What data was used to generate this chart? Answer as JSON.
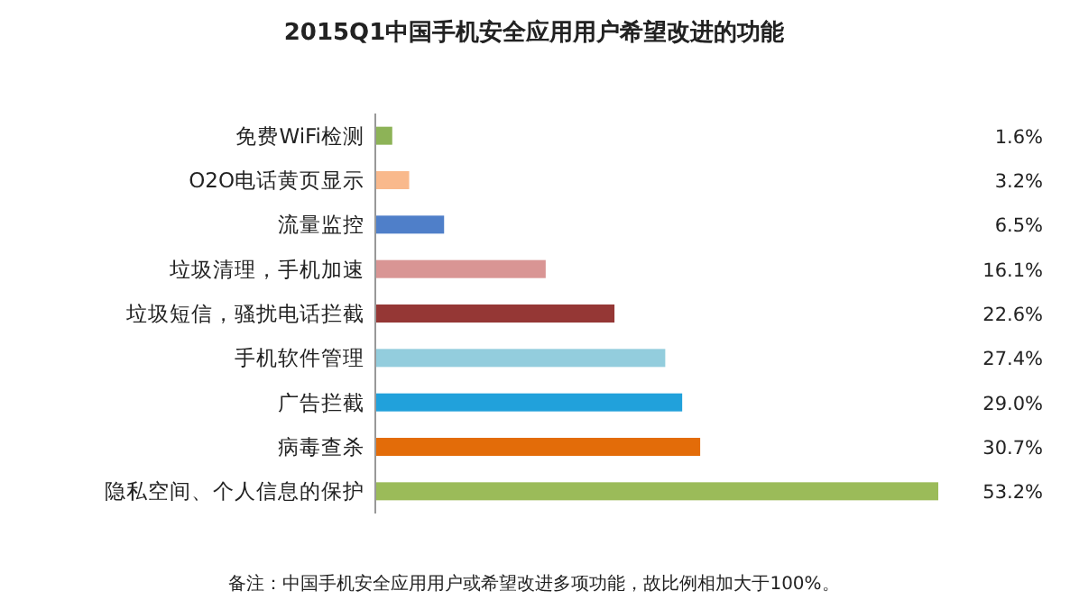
{
  "chart_data": {
    "type": "bar",
    "orientation": "horizontal",
    "title": "2015Q1中国手机安全应用用户希望改进的功能",
    "categories": [
      "免费WiFi检测",
      "O2O电话黄页显示",
      "流量监控",
      "垃圾清理，手机加速",
      "垃圾短信，骚扰电话拦截",
      "手机软件管理",
      "广告拦截",
      "病毒查杀",
      "隐私空间、个人信息的保护"
    ],
    "values": [
      1.6,
      3.2,
      6.5,
      16.1,
      22.6,
      27.4,
      29.0,
      30.7,
      53.2
    ],
    "value_labels": [
      "1.6%",
      "3.2%",
      "6.5%",
      "16.1%",
      "22.6%",
      "27.4%",
      "29.0%",
      "30.7%",
      "53.2%"
    ],
    "colors": [
      "#8db357",
      "#f9b98c",
      "#4f7fc9",
      "#d99594",
      "#953735",
      "#93cddd",
      "#21a1db",
      "#e36c09",
      "#9bbb59"
    ],
    "tick_labels": "y",
    "annotations": [
      "备注：中国手机安全应用用户或希望改进多项功能，故比例相加大于100%。"
    ]
  }
}
